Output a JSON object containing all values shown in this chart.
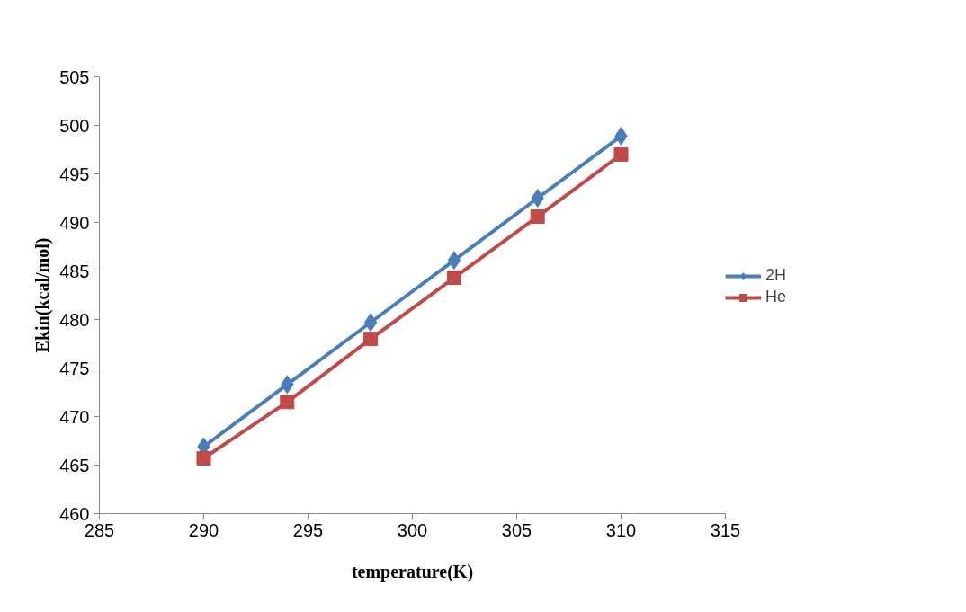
{
  "chart_data": {
    "type": "line",
    "xlabel": "temperature(K)",
    "ylabel": "Ekin(kcal/mol)",
    "x": [
      290,
      294,
      298,
      302,
      306,
      310
    ],
    "series": [
      {
        "name": "2H",
        "color": "#4a7ebb",
        "values": [
          466.9,
          473.3,
          479.7,
          486.1,
          492.5,
          498.9
        ],
        "marker": "diamond"
      },
      {
        "name": "He",
        "color": "#be4b48",
        "values": [
          465.7,
          471.5,
          478.0,
          484.3,
          490.6,
          497.0
        ],
        "marker": "square"
      }
    ],
    "xlim": [
      285,
      315
    ],
    "xticks": [
      285,
      290,
      295,
      300,
      305,
      310,
      315
    ],
    "ylim": [
      460,
      505
    ],
    "yticks": [
      460,
      465,
      470,
      475,
      480,
      485,
      490,
      495,
      500,
      505
    ],
    "grid": false,
    "legend": "right",
    "line_style": "solid"
  }
}
